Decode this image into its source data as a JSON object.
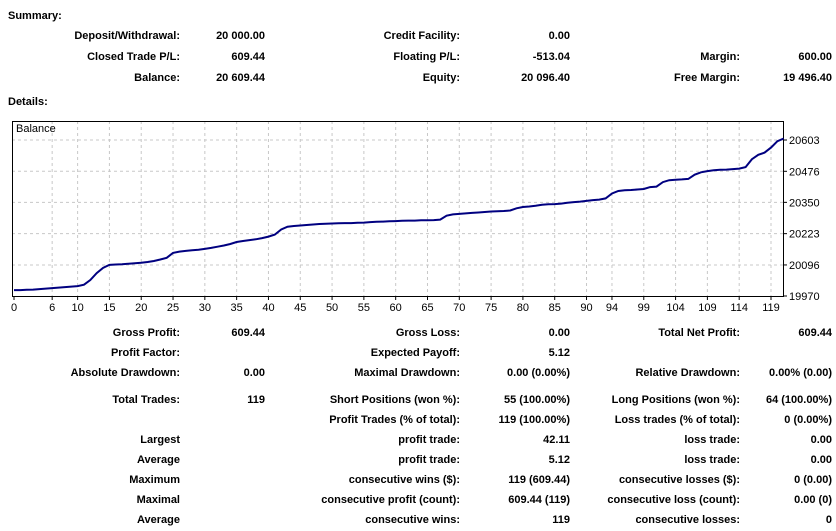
{
  "summary": {
    "title": "Summary:",
    "rows": [
      [
        "Deposit/Withdrawal:",
        "20 000.00",
        "Credit Facility:",
        "0.00",
        "",
        ""
      ],
      [
        "Closed Trade P/L:",
        "609.44",
        "Floating P/L:",
        "-513.04",
        "Margin:",
        "600.00"
      ],
      [
        "Balance:",
        "20 609.44",
        "Equity:",
        "20 096.40",
        "Free Margin:",
        "19 496.40"
      ]
    ]
  },
  "details": {
    "title": "Details:",
    "gap_after_row_index": 2,
    "rows": [
      [
        "Gross Profit:",
        "609.44",
        "Gross Loss:",
        "0.00",
        "Total Net Profit:",
        "609.44"
      ],
      [
        "Profit Factor:",
        "",
        "Expected Payoff:",
        "5.12",
        "",
        ""
      ],
      [
        "Absolute Drawdown:",
        "0.00",
        "Maximal Drawdown:",
        "0.00 (0.00%)",
        "Relative Drawdown:",
        "0.00% (0.00)"
      ],
      [
        "Total Trades:",
        "119",
        "Short Positions (won %):",
        "55 (100.00%)",
        "Long Positions (won %):",
        "64 (100.00%)"
      ],
      [
        "",
        "",
        "Profit Trades (% of total):",
        "119 (100.00%)",
        "Loss trades (% of total):",
        "0 (0.00%)"
      ],
      [
        "Largest",
        "",
        "profit trade:",
        "42.11",
        "loss trade:",
        "0.00"
      ],
      [
        "Average",
        "",
        "profit trade:",
        "5.12",
        "loss trade:",
        "0.00"
      ],
      [
        "Maximum",
        "",
        "consecutive wins ($):",
        "119 (609.44)",
        "consecutive losses ($):",
        "0 (0.00)"
      ],
      [
        "Maximal",
        "",
        "consecutive profit (count):",
        "609.44 (119)",
        "consecutive loss (count):",
        "0.00 (0)"
      ],
      [
        "Average",
        "",
        "consecutive wins:",
        "119",
        "consecutive losses:",
        "0"
      ]
    ]
  },
  "chart_data": {
    "type": "line",
    "title": "Balance",
    "xlabel": "",
    "ylabel": "",
    "x_note": "trade number = array index",
    "xlim": [
      0,
      121
    ],
    "ylim": [
      19970,
      20680
    ],
    "grid": true,
    "legend_position": "top-left-inside",
    "x_ticks": [
      0,
      6,
      10,
      15,
      20,
      25,
      30,
      35,
      40,
      45,
      50,
      55,
      60,
      65,
      70,
      75,
      80,
      85,
      90,
      94,
      99,
      104,
      109,
      114,
      119
    ],
    "y_ticks": [
      19970,
      20096,
      20223,
      20350,
      20476,
      20603
    ],
    "line_color": "#000080",
    "grid_color": "#c8c8c8",
    "series": [
      {
        "name": "Balance",
        "values": [
          19994,
          19994,
          19995,
          19996,
          19998,
          20000,
          20002,
          20004,
          20006,
          20008,
          20010,
          20016,
          20035,
          20063,
          20084,
          20096,
          20098,
          20099,
          20101,
          20103,
          20105,
          20108,
          20112,
          20118,
          20125,
          20145,
          20150,
          20153,
          20156,
          20158,
          20161,
          20165,
          20170,
          20175,
          20181,
          20189,
          20193,
          20197,
          20200,
          20205,
          20211,
          20219,
          20240,
          20251,
          20254,
          20256,
          20258,
          20260,
          20262,
          20263,
          20264,
          20265,
          20266,
          20266,
          20267,
          20268,
          20270,
          20271,
          20272,
          20273,
          20274,
          20275,
          20276,
          20276,
          20277,
          20277,
          20278,
          20280,
          20296,
          20301,
          20303,
          20305,
          20307,
          20309,
          20311,
          20313,
          20314,
          20315,
          20317,
          20326,
          20331,
          20333,
          20336,
          20340,
          20342,
          20343,
          20345,
          20348,
          20351,
          20353,
          20356,
          20359,
          20361,
          20366,
          20386,
          20396,
          20399,
          20400,
          20402,
          20404,
          20412,
          20414,
          20432,
          20440,
          20442,
          20443,
          20445,
          20462,
          20472,
          20477,
          20480,
          20482,
          20483,
          20485,
          20487,
          20493,
          20525,
          20543,
          20552,
          20572,
          20598,
          20609
        ]
      }
    ]
  }
}
